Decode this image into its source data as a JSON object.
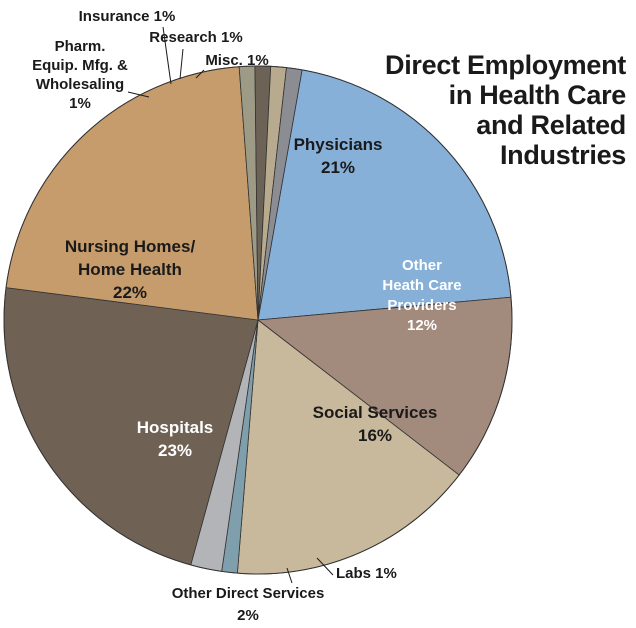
{
  "chart_data": {
    "type": "pie",
    "title_lines": [
      "Direct Employment",
      "in Health Care",
      "and Related",
      "Industries"
    ],
    "slices": [
      {
        "name": "Physicians",
        "value": 21,
        "label": "21%",
        "color": "#86b0d8"
      },
      {
        "name": "Other Heath Care Providers",
        "value": 12,
        "label": "12%",
        "color": "#a28a7c"
      },
      {
        "name": "Social Services",
        "value": 16,
        "label": "16%",
        "color": "#c8b89c"
      },
      {
        "name": "Labs",
        "value": 1,
        "label": "1%",
        "color": "#7f9fad"
      },
      {
        "name": "Other Direct Services",
        "value": 2,
        "label": "2%",
        "color": "#b3b4b8"
      },
      {
        "name": "Hospitals",
        "value": 23,
        "label": "23%",
        "color": "#6f6254"
      },
      {
        "name": "Nursing Homes/ Home Health",
        "value": 22,
        "label": "22%",
        "color": "#c79c6c"
      },
      {
        "name": "Pharm. Equip. Mfg. & Wholesaling",
        "value": 1,
        "label": "1%",
        "color": "#9d9a86"
      },
      {
        "name": "Insurance",
        "value": 1,
        "label": "1%",
        "color": "#6c6256"
      },
      {
        "name": "Research",
        "value": 1,
        "label": "1%",
        "color": "#b8aa8e"
      },
      {
        "name": "Misc.",
        "value": 1,
        "label": "1%",
        "color": "#8c8c93"
      }
    ],
    "labels": [
      {
        "lines": [
          "Physicians",
          "21%"
        ],
        "color": "#1a1a1a"
      },
      {
        "lines": [
          "Other",
          "Heath Care",
          "Providers",
          "12%"
        ],
        "color": "#ffffff"
      },
      {
        "lines": [
          "Social Services",
          "16%"
        ],
        "color": "#1a1a1a"
      },
      {
        "lines": [
          "Labs 1%"
        ],
        "color": "#1a1a1a"
      },
      {
        "lines": [
          "Other Direct Services",
          "2%"
        ],
        "color": "#1a1a1a"
      },
      {
        "lines": [
          "Hospitals",
          "23%"
        ],
        "color": "#ffffff"
      },
      {
        "lines": [
          "Nursing Homes/",
          "Home Health",
          "22%"
        ],
        "color": "#1a1a1a"
      },
      {
        "lines": [
          "Pharm.",
          "Equip. Mfg. &",
          "Wholesaling",
          "1%"
        ],
        "color": "#1a1a1a"
      },
      {
        "lines": [
          "Insurance 1%"
        ],
        "color": "#1a1a1a"
      },
      {
        "lines": [
          "Research 1%"
        ],
        "color": "#1a1a1a"
      },
      {
        "lines": [
          "Misc. 1%"
        ],
        "color": "#1a1a1a"
      }
    ]
  }
}
